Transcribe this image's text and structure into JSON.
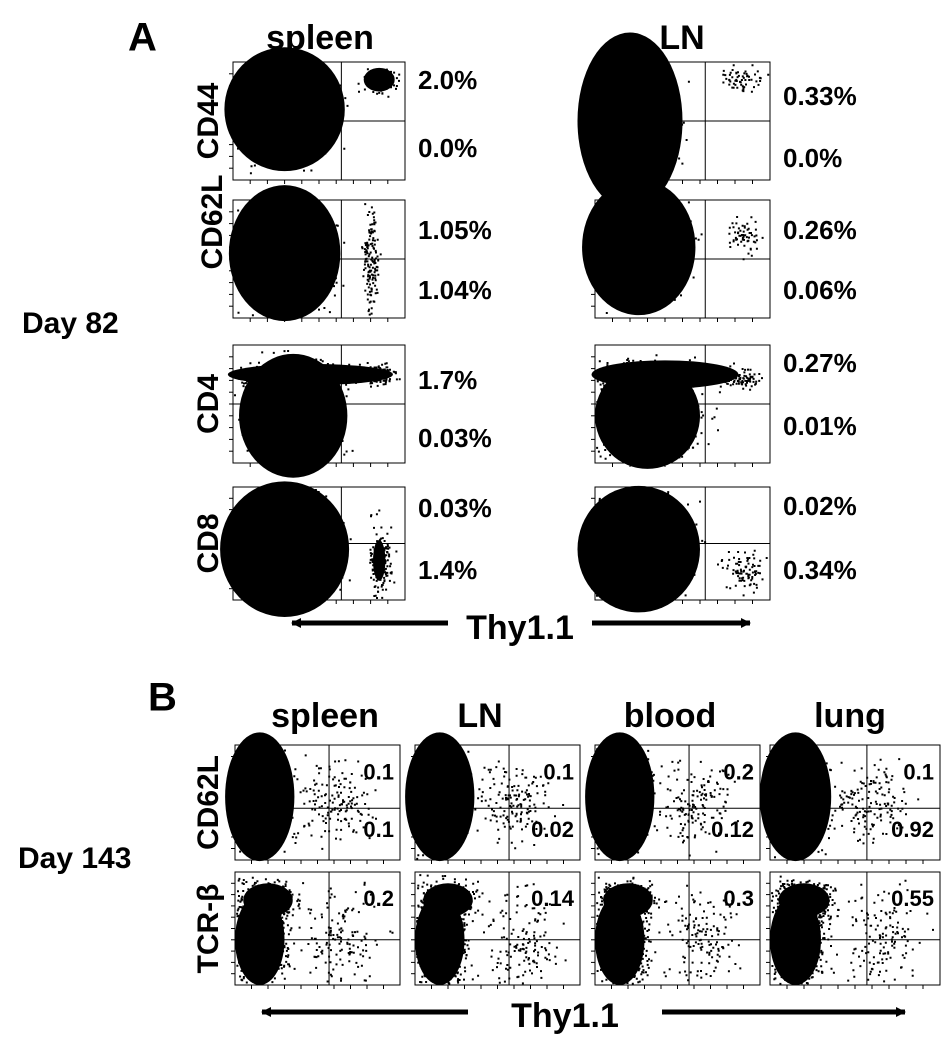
{
  "panel_a": {
    "label": "A",
    "columns": [
      "spleen",
      "LN"
    ],
    "group_label": "Day 82",
    "rows": [
      {
        "marker": "CD44",
        "values": [
          [
            "2.0%",
            "0.0%"
          ],
          [
            "0.33%",
            "0.0%"
          ]
        ]
      },
      {
        "marker": "CD62L",
        "values": [
          [
            "1.05%",
            "1.04%"
          ],
          [
            "0.26%",
            "0.06%"
          ]
        ]
      },
      {
        "marker": "CD4",
        "values": [
          [
            "1.7%",
            "0.03%"
          ],
          [
            "0.27%",
            "0.01%"
          ]
        ]
      },
      {
        "marker": "CD8",
        "values": [
          [
            "0.03%",
            "1.4%"
          ],
          [
            "0.02%",
            "0.34%"
          ]
        ]
      }
    ],
    "x_axis_label": "Thy1.1"
  },
  "panel_b": {
    "label": "B",
    "columns": [
      "spleen",
      "LN",
      "blood",
      "lung"
    ],
    "group_label": "Day 143",
    "rows": [
      {
        "marker": "CD62L",
        "values": [
          [
            "0.1",
            "0.1"
          ],
          [
            "0.1",
            "0.02"
          ],
          [
            "0.2",
            "0.12"
          ],
          [
            "0.1",
            "0.92"
          ]
        ]
      },
      {
        "marker": "TCR-β",
        "values": [
          [
            "0.2"
          ],
          [
            "0.14"
          ],
          [
            "0.3"
          ],
          [
            "0.55"
          ]
        ]
      }
    ],
    "x_axis_label": "Thy1.1"
  }
}
